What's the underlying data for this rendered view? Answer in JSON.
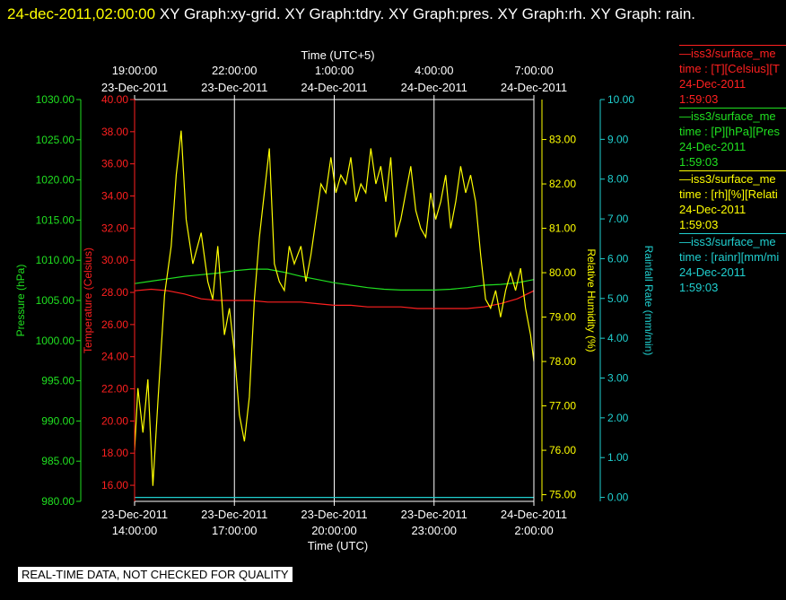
{
  "header": {
    "timestamp": "24-dec-2011,02:00:00",
    "graphs": "XY Graph:xy-grid.  XY Graph:tdry.  XY Graph:pres.  XY Graph:rh.  XY Graph: rain."
  },
  "legend": [
    {
      "line1": "—iss3/surface_me",
      "line2": "time : [T][Celsius][T",
      "line3": "24-Dec-2011",
      "line4": "1:59:03",
      "color": "#ff2020"
    },
    {
      "line1": "—iss3/surface_me",
      "line2": "time : [P][hPa][Pres",
      "line3": "24-Dec-2011",
      "line4": "1:59:03",
      "color": "#20e020"
    },
    {
      "line1": "—iss3/surface_me",
      "line2": "time : [rh][%][Relati",
      "line3": "24-Dec-2011",
      "line4": "1:59:03",
      "color": "#ffff00"
    },
    {
      "line1": "—iss3/surface_me",
      "line2": "time : [rainr][mm/mi",
      "line3": "24-Dec-2011",
      "line4": "1:59:03",
      "color": "#20d0d0"
    }
  ],
  "disclaimer": "REAL-TIME DATA, NOT CHECKED FOR QUALITY",
  "colors": {
    "temperature": "#ff2020",
    "pressure": "#20e020",
    "humidity": "#ffff00",
    "rain": "#20d0d0",
    "grid": "#ffffff"
  },
  "chart_data": {
    "type": "line",
    "top_axis": {
      "label": "Time (UTC+5)",
      "ticks": [
        {
          "time": "19:00:00",
          "date": "23-Dec-2011"
        },
        {
          "time": "22:00:00",
          "date": "23-Dec-2011"
        },
        {
          "time": "1:00:00",
          "date": "24-Dec-2011"
        },
        {
          "time": "4:00:00",
          "date": "24-Dec-2011"
        },
        {
          "time": "7:00:00",
          "date": "24-Dec-2011"
        }
      ]
    },
    "bottom_axis": {
      "label": "Time (UTC)",
      "range_hours": [
        0,
        12
      ],
      "start": "23-Dec-2011 14:00:00",
      "ticks": [
        {
          "date": "23-Dec-2011",
          "time": "14:00:00"
        },
        {
          "date": "23-Dec-2011",
          "time": "17:00:00"
        },
        {
          "date": "23-Dec-2011",
          "time": "20:00:00"
        },
        {
          "date": "23-Dec-2011",
          "time": "23:00:00"
        },
        {
          "date": "24-Dec-2011",
          "time": "2:00:00"
        }
      ]
    },
    "pressure_axis": {
      "label": "Pressure (hPa)",
      "ylim": [
        980,
        1030
      ],
      "ticks": [
        "1030.00",
        "1025.00",
        "1020.00",
        "1015.00",
        "1010.00",
        "1005.00",
        "1000.00",
        "995.00",
        "990.00",
        "985.00",
        "980.00"
      ]
    },
    "temperature_axis": {
      "label": "Temperature (Celsius)",
      "ylim": [
        15,
        40
      ],
      "ticks": [
        "40.00",
        "38.00",
        "36.00",
        "34.00",
        "32.00",
        "30.00",
        "28.00",
        "26.00",
        "24.00",
        "22.00",
        "20.00",
        "18.00",
        "16.00"
      ]
    },
    "humidity_axis": {
      "label": "Relative Humidity (%)",
      "ylim": [
        74.85,
        83.9
      ],
      "ticks": [
        "83.00",
        "82.00",
        "81.00",
        "80.00",
        "79.00",
        "78.00",
        "77.00",
        "76.00",
        "75.00"
      ]
    },
    "rain_axis": {
      "label": "Rainfall Rate (mm/min)",
      "ylim": [
        -0.1,
        10
      ],
      "ticks": [
        "10.00",
        "9.00",
        "8.00",
        "7.00",
        "6.00",
        "5.00",
        "4.00",
        "3.00",
        "2.00",
        "1.00",
        "0.00"
      ]
    },
    "series": [
      {
        "name": "iss3/surface_met temperature",
        "key": "temperature",
        "x": [
          0,
          0.5,
          1,
          1.5,
          2,
          2.5,
          3,
          3.5,
          4,
          4.5,
          5,
          5.5,
          6,
          6.5,
          7,
          7.5,
          8,
          8.5,
          9,
          9.5,
          10,
          10.5,
          11,
          11.5,
          12
        ],
        "values": [
          28.1,
          28.2,
          28.1,
          27.9,
          27.6,
          27.5,
          27.5,
          27.5,
          27.4,
          27.4,
          27.4,
          27.3,
          27.2,
          27.2,
          27.1,
          27.1,
          27.1,
          27.0,
          27.0,
          27.0,
          27.0,
          27.1,
          27.3,
          27.6,
          28.1
        ]
      },
      {
        "name": "iss3/surface_met pressure",
        "key": "pressure",
        "x": [
          0,
          0.5,
          1,
          1.5,
          2,
          2.5,
          3,
          3.5,
          4,
          4.5,
          5,
          5.5,
          6,
          6.5,
          7,
          7.5,
          8,
          8.5,
          9,
          9.5,
          10,
          10.5,
          11,
          11.5,
          12
        ],
        "values": [
          1007.1,
          1007.4,
          1007.7,
          1008.0,
          1008.2,
          1008.4,
          1008.7,
          1008.9,
          1008.9,
          1008.5,
          1008.0,
          1007.6,
          1007.2,
          1006.9,
          1006.6,
          1006.4,
          1006.3,
          1006.3,
          1006.3,
          1006.4,
          1006.6,
          1006.9,
          1007.0,
          1007.2,
          1007.6
        ]
      },
      {
        "name": "iss3/surface_met relative humidity",
        "key": "humidity",
        "x": [
          0,
          0.1,
          0.25,
          0.4,
          0.55,
          0.7,
          0.9,
          1.1,
          1.25,
          1.4,
          1.55,
          1.75,
          2,
          2.2,
          2.35,
          2.5,
          2.7,
          2.85,
          3,
          3.15,
          3.3,
          3.45,
          3.6,
          3.75,
          3.9,
          4.05,
          4.2,
          4.35,
          4.5,
          4.65,
          4.8,
          5,
          5.15,
          5.3,
          5.45,
          5.6,
          5.75,
          5.9,
          6.05,
          6.2,
          6.35,
          6.5,
          6.65,
          6.8,
          6.95,
          7.1,
          7.25,
          7.4,
          7.55,
          7.7,
          7.85,
          8,
          8.15,
          8.3,
          8.45,
          8.6,
          8.75,
          8.9,
          9.05,
          9.2,
          9.35,
          9.5,
          9.65,
          9.8,
          9.95,
          10.1,
          10.25,
          10.4,
          10.55,
          10.7,
          10.85,
          11,
          11.15,
          11.3,
          11.45,
          11.6,
          11.75,
          11.9,
          12
        ],
        "values": [
          76.0,
          77.4,
          76.4,
          77.6,
          75.2,
          77.1,
          79.5,
          80.6,
          82.2,
          83.2,
          81.2,
          80.2,
          80.9,
          79.8,
          79.4,
          80.6,
          78.6,
          79.2,
          78.2,
          76.8,
          76.2,
          77.2,
          79.4,
          80.8,
          81.8,
          82.8,
          80.2,
          79.8,
          79.6,
          80.6,
          80.2,
          80.6,
          79.8,
          80.4,
          81.2,
          82.0,
          81.8,
          82.6,
          81.8,
          82.2,
          82.0,
          82.6,
          81.6,
          82.0,
          81.8,
          82.8,
          82.0,
          82.4,
          81.6,
          82.6,
          80.8,
          81.2,
          81.8,
          82.4,
          81.4,
          81.0,
          80.8,
          81.8,
          81.2,
          81.6,
          82.2,
          81.0,
          81.6,
          82.4,
          81.8,
          82.2,
          81.6,
          80.4,
          79.4,
          79.2,
          79.6,
          79.0,
          79.6,
          80.0,
          79.6,
          80.1,
          79.2,
          78.6,
          78.0
        ]
      },
      {
        "name": "iss3/surface_met rainfall rate",
        "key": "rain",
        "x": [
          0,
          12
        ],
        "values": [
          0.0,
          0.0
        ]
      }
    ]
  }
}
